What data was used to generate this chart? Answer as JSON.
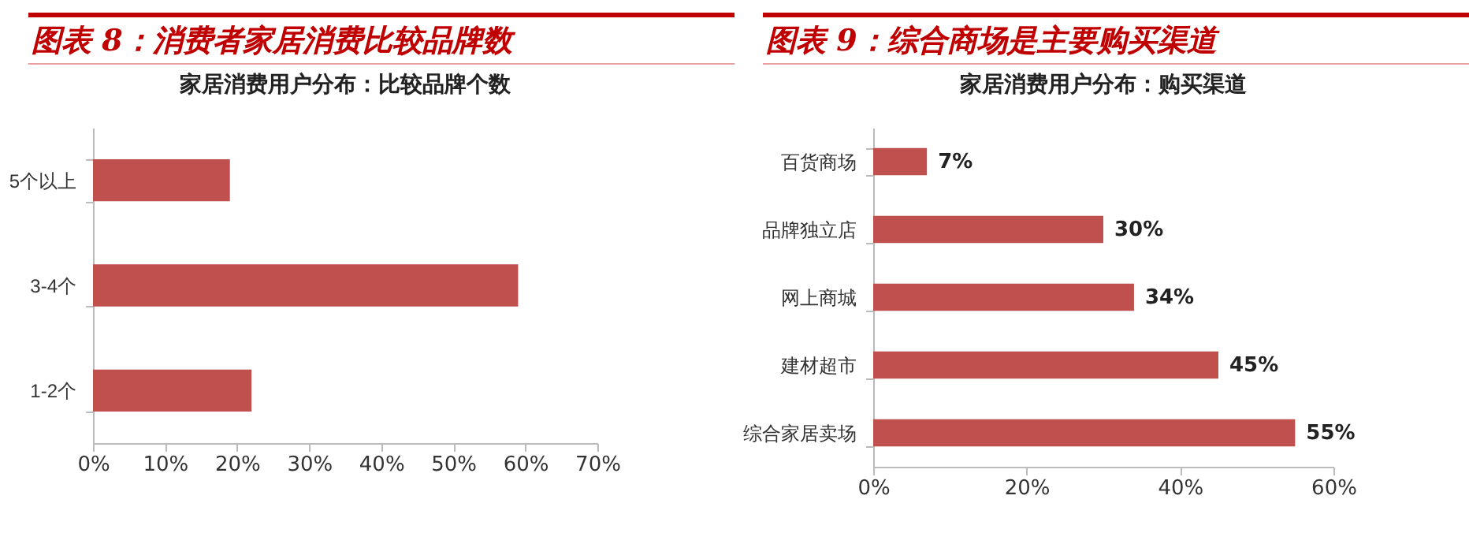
{
  "chart_data": [
    {
      "type": "bar",
      "orientation": "horizontal",
      "title": "图表 8：消费者家居消费比较品牌数",
      "subtitle": "家居消费用户分布：比较品牌个数",
      "categories": [
        "5个以上",
        "3-4个",
        "1-2个"
      ],
      "values": [
        19,
        59,
        22
      ],
      "color": "#c0504d",
      "xlim": [
        0,
        70
      ],
      "xticks": [
        {
          "value": 0,
          "label": "0%"
        },
        {
          "value": 10,
          "label": "10%"
        },
        {
          "value": 20,
          "label": "20%"
        },
        {
          "value": 30,
          "label": "30%"
        },
        {
          "value": 40,
          "label": "40%"
        },
        {
          "value": 50,
          "label": "50%"
        },
        {
          "value": 60,
          "label": "60%"
        },
        {
          "value": 70,
          "label": "70%"
        }
      ],
      "grid": false
    },
    {
      "type": "bar",
      "orientation": "horizontal",
      "title": "图表 9：综合商场是主要购买渠道",
      "subtitle": "家居消费用户分布：购买渠道",
      "categories": [
        "百货商场",
        "品牌独立店",
        "网上商城",
        "建材超市",
        "综合家居卖场"
      ],
      "values": [
        7,
        30,
        34,
        45,
        55
      ],
      "value_labels": [
        "7%",
        "30%",
        "34%",
        "45%",
        "55%"
      ],
      "color": "#c0504d",
      "xlim": [
        0,
        60
      ],
      "xticks": [
        {
          "value": 0,
          "label": "0%"
        },
        {
          "value": 20,
          "label": "20%"
        },
        {
          "value": 40,
          "label": "40%"
        },
        {
          "value": 60,
          "label": "60%"
        }
      ],
      "grid": false
    }
  ]
}
